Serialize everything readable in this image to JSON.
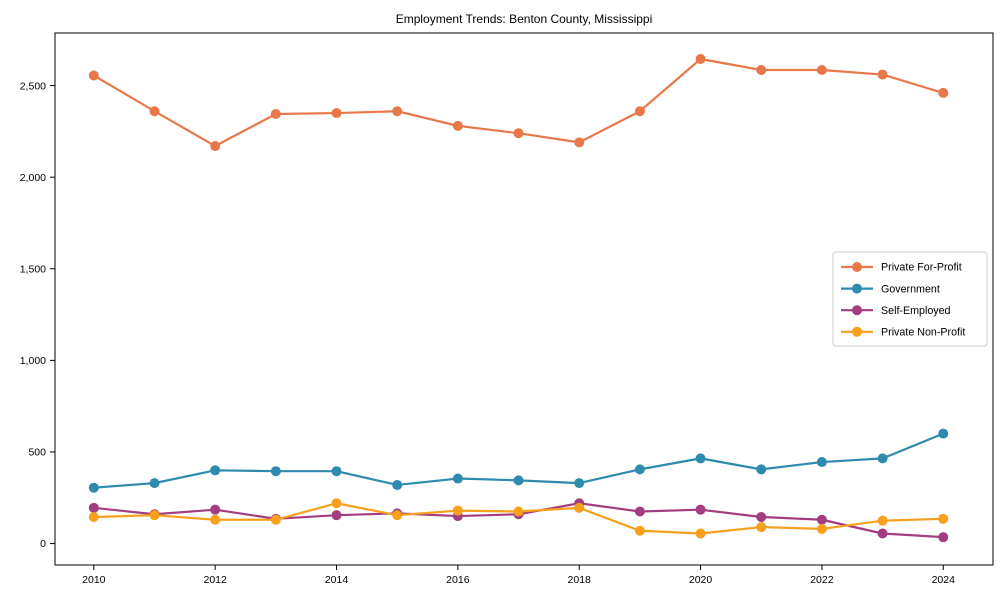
{
  "title": "Employment Trends: Benton County, Mississippi",
  "chart_data": {
    "type": "line",
    "title": "Employment Trends: Benton County, Mississippi",
    "xlabel": "",
    "ylabel": "",
    "x": [
      2010,
      2011,
      2012,
      2013,
      2014,
      2015,
      2016,
      2017,
      2018,
      2019,
      2020,
      2021,
      2022,
      2023,
      2024
    ],
    "series": [
      {
        "name": "Private For-Profit",
        "color": "#e8784a",
        "values": [
          2555,
          2360,
          2170,
          2345,
          2350,
          2360,
          2280,
          2240,
          2190,
          2360,
          2645,
          2585,
          2585,
          2560,
          2460
        ]
      },
      {
        "name": "Government",
        "color": "#2e8bad",
        "values": [
          305,
          330,
          400,
          395,
          395,
          320,
          355,
          345,
          330,
          405,
          465,
          405,
          445,
          465,
          600
        ]
      },
      {
        "name": "Self-Employed",
        "color": "#a33d7f",
        "values": [
          195,
          160,
          185,
          135,
          155,
          165,
          150,
          160,
          220,
          175,
          185,
          145,
          130,
          55,
          35
        ]
      },
      {
        "name": "Private Non-Profit",
        "color": "#f6a01e",
        "values": [
          145,
          155,
          130,
          130,
          220,
          155,
          180,
          175,
          195,
          70,
          55,
          90,
          80,
          125,
          135
        ]
      }
    ],
    "xticks": [
      "2010",
      "2012",
      "2014",
      "2016",
      "2018",
      "2020",
      "2022",
      "2024"
    ],
    "xtick_values": [
      2010,
      2012,
      2014,
      2016,
      2018,
      2020,
      2022,
      2024
    ],
    "yticks": [
      "0",
      "500",
      "1,000",
      "1,500",
      "2,000",
      "2,500"
    ],
    "ytick_values": [
      0,
      500,
      1000,
      1500,
      2000,
      2500
    ],
    "xlim": [
      2009.36,
      2024.82
    ],
    "ylim": [
      -117,
      2787
    ],
    "grid": false,
    "legend_position": "center-right",
    "axis_color": "#000000",
    "background_color": "#ffffff"
  }
}
